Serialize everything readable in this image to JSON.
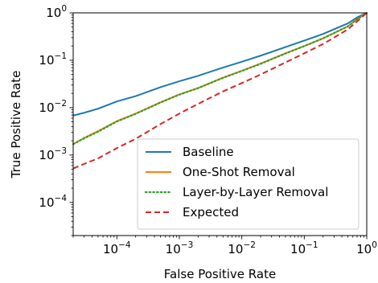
{
  "chart_data": {
    "type": "line",
    "xlabel": "False Positive Rate",
    "ylabel": "True Positive Rate",
    "xscale": "log",
    "yscale": "log",
    "xlim": [
      2e-05,
      1
    ],
    "ylim": [
      2e-05,
      1
    ],
    "x_ticks": [
      0.0001,
      0.001,
      0.01,
      0.1,
      1
    ],
    "y_ticks": [
      0.0001,
      0.001,
      0.01,
      0.1,
      1
    ],
    "tick_base": "10",
    "x_tick_exponents": [
      "−4",
      "−3",
      "−2",
      "−1",
      "0"
    ],
    "y_tick_exponents": [
      "−4",
      "−3",
      "−2",
      "−1",
      "0"
    ],
    "grid": false,
    "legend_position": "lower-right",
    "series": [
      {
        "name": "Baseline",
        "color": "#1f77b4",
        "style": "solid",
        "points": [
          [
            2e-05,
            0.0068
          ],
          [
            3e-05,
            0.0078
          ],
          [
            5e-05,
            0.0095
          ],
          [
            0.0001,
            0.0135
          ],
          [
            0.0002,
            0.0175
          ],
          [
            0.0005,
            0.027
          ],
          [
            0.001,
            0.036
          ],
          [
            0.002,
            0.047
          ],
          [
            0.005,
            0.07
          ],
          [
            0.01,
            0.093
          ],
          [
            0.02,
            0.125
          ],
          [
            0.05,
            0.19
          ],
          [
            0.1,
            0.26
          ],
          [
            0.2,
            0.36
          ],
          [
            0.5,
            0.6
          ],
          [
            0.7,
            0.8
          ],
          [
            1,
            1
          ]
        ]
      },
      {
        "name": "One-Shot Removal",
        "color": "#ff7f0e",
        "style": "solid",
        "points": [
          [
            2e-05,
            0.0017
          ],
          [
            3e-05,
            0.0023
          ],
          [
            5e-05,
            0.0032
          ],
          [
            0.0001,
            0.0052
          ],
          [
            0.0002,
            0.0075
          ],
          [
            0.0005,
            0.013
          ],
          [
            0.001,
            0.019
          ],
          [
            0.002,
            0.026
          ],
          [
            0.005,
            0.043
          ],
          [
            0.01,
            0.06
          ],
          [
            0.02,
            0.085
          ],
          [
            0.05,
            0.14
          ],
          [
            0.1,
            0.2
          ],
          [
            0.2,
            0.29
          ],
          [
            0.5,
            0.52
          ],
          [
            0.7,
            0.73
          ],
          [
            1,
            1
          ]
        ]
      },
      {
        "name": "Layer-by-Layer Removal",
        "color": "#2ca02c",
        "style": "dotted",
        "points": [
          [
            2e-05,
            0.0017
          ],
          [
            3e-05,
            0.00225
          ],
          [
            5e-05,
            0.0031
          ],
          [
            0.0001,
            0.0051
          ],
          [
            0.0002,
            0.0074
          ],
          [
            0.0005,
            0.0128
          ],
          [
            0.001,
            0.0188
          ],
          [
            0.002,
            0.0258
          ],
          [
            0.005,
            0.0425
          ],
          [
            0.01,
            0.0595
          ],
          [
            0.02,
            0.084
          ],
          [
            0.05,
            0.139
          ],
          [
            0.1,
            0.199
          ],
          [
            0.2,
            0.29
          ],
          [
            0.5,
            0.52
          ],
          [
            0.7,
            0.73
          ],
          [
            1,
            1
          ]
        ]
      },
      {
        "name": "Expected",
        "color": "#d62728",
        "style": "dashed",
        "points": [
          [
            2e-05,
            0.00052
          ],
          [
            3e-05,
            0.00065
          ],
          [
            5e-05,
            0.00085
          ],
          [
            0.0001,
            0.0014
          ],
          [
            0.0002,
            0.0022
          ],
          [
            0.0005,
            0.0045
          ],
          [
            0.001,
            0.0075
          ],
          [
            0.002,
            0.012
          ],
          [
            0.005,
            0.022
          ],
          [
            0.01,
            0.033
          ],
          [
            0.02,
            0.05
          ],
          [
            0.05,
            0.09
          ],
          [
            0.1,
            0.14
          ],
          [
            0.2,
            0.22
          ],
          [
            0.5,
            0.45
          ],
          [
            0.7,
            0.66
          ],
          [
            1,
            1
          ]
        ]
      }
    ]
  }
}
